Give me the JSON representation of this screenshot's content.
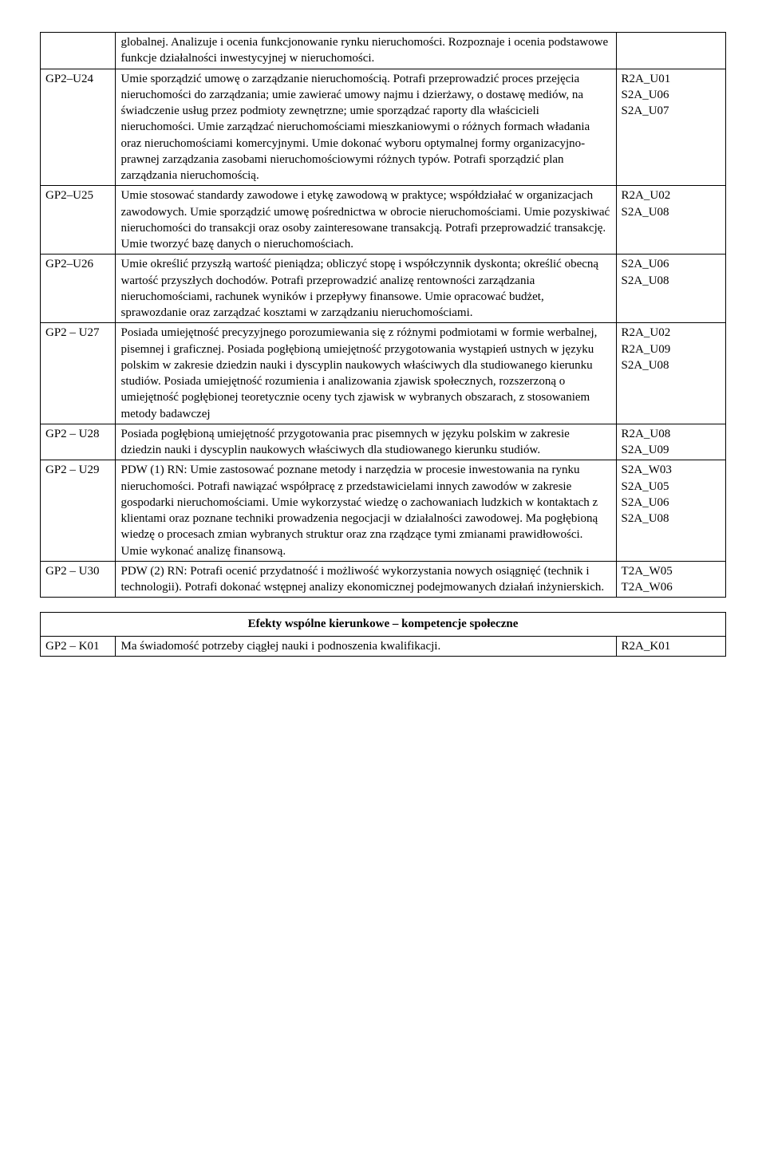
{
  "main_table": {
    "rows": [
      {
        "code": "",
        "desc": "globalnej. Analizuje i ocenia funkcjonowanie rynku nieruchomości. Rozpoznaje i ocenia podstawowe funkcje działalności inwestycyjnej w nieruchomości.",
        "refs": []
      },
      {
        "code": "GP2–U24",
        "desc": "Umie sporządzić umowę o zarządzanie nieruchomością. Potrafi przeprowadzić proces przejęcia nieruchomości do zarządzania; umie zawierać umowy najmu i dzierżawy, o dostawę mediów, na świadczenie usług przez podmioty zewnętrzne; umie sporządzać raporty dla właścicieli nieruchomości. Umie zarządzać nieruchomościami mieszkaniowymi o różnych formach władania oraz nieruchomościami komercyjnymi. Umie dokonać wyboru optymalnej formy organizacyjno-prawnej zarządzania zasobami nieruchomościowymi różnych typów. Potrafi sporządzić plan zarządzania nieruchomością.",
        "refs": [
          "R2A_U01",
          "S2A_U06",
          "S2A_U07"
        ]
      },
      {
        "code": "GP2–U25",
        "desc": "Umie stosować standardy zawodowe i etykę zawodową w praktyce; współdziałać w organizacjach zawodowych. Umie sporządzić umowę pośrednictwa w obrocie nieruchomościami. Umie pozyskiwać nieruchomości do transakcji oraz osoby zainteresowane transakcją. Potrafi przeprowadzić transakcję. Umie tworzyć bazę danych o nieruchomościach.",
        "refs": [
          "R2A_U02",
          "S2A_U08"
        ]
      },
      {
        "code": "GP2–U26",
        "desc": "Umie określić przyszłą wartość pieniądza; obliczyć stopę i współczynnik dyskonta; określić obecną wartość przyszłych dochodów. Potrafi przeprowadzić analizę rentowności zarządzania nieruchomościami, rachunek wyników i przepływy finansowe. Umie opracować budżet, sprawozdanie oraz zarządzać kosztami w zarządzaniu nieruchomościami.",
        "refs": [
          "S2A_U06",
          "S2A_U08"
        ]
      },
      {
        "code": "GP2 – U27",
        "desc": "Posiada umiejętność precyzyjnego porozumiewania się z różnymi podmiotami w formie werbalnej, pisemnej i graficznej. Posiada pogłębioną umiejętność przygotowania wystąpień ustnych  w języku polskim w zakresie dziedzin nauki i dyscyplin naukowych właściwych dla studiowanego kierunku studiów. Posiada umiejętność rozumienia i analizowania zjawisk społecznych, rozszerzoną o umiejętność pogłębionej teoretycznie oceny tych zjawisk w wybranych obszarach, z stosowaniem metody badawczej",
        "refs": [
          "R2A_U02",
          "R2A_U09",
          "S2A_U08"
        ]
      },
      {
        "code": "GP2 – U28",
        "desc": "Posiada pogłębioną umiejętność przygotowania prac pisemnych w  języku polskim w zakresie dziedzin nauki i dyscyplin naukowych właściwych dla studiowanego kierunku studiów.",
        "refs": [
          "R2A_U08",
          "S2A_U09"
        ]
      },
      {
        "code": "GP2 – U29",
        "desc": "PDW (1) RN: Umie zastosować poznane metody i narzędzia w procesie inwestowania na rynku nieruchomości. Potrafi nawiązać współpracę z przedstawicielami innych zawodów w zakresie gospodarki nieruchomościami. Umie wykorzystać wiedzę o zachowaniach ludzkich w kontaktach z klientami oraz poznane techniki prowadzenia negocjacji w działalności zawodowej. Ma pogłębioną wiedzę o procesach zmian wybranych struktur oraz zna rządzące tymi zmianami prawidłowości. Umie wykonać analizę finansową.",
        "refs": [
          "S2A_W03",
          " S2A_U05",
          "S2A_U06",
          "S2A_U08"
        ]
      },
      {
        "code": "GP2 – U30",
        "desc": "PDW (2) RN: Potrafi ocenić przydatność i możliwość wykorzystania nowych osiągnięć (technik i technologii). Potrafi dokonać wstępnej analizy ekonomicznej podejmowanych działań inżynierskich.",
        "refs": [
          "T2A_W05",
          "T2A_W06"
        ]
      }
    ]
  },
  "second_table": {
    "header": "Efekty wspólne kierunkowe – kompetencje społeczne",
    "rows": [
      {
        "code": "GP2 – K01",
        "desc": "Ma świadomość potrzeby ciągłej nauki i podnoszenia kwalifikacji.",
        "refs": [
          "R2A_K01"
        ]
      }
    ]
  }
}
